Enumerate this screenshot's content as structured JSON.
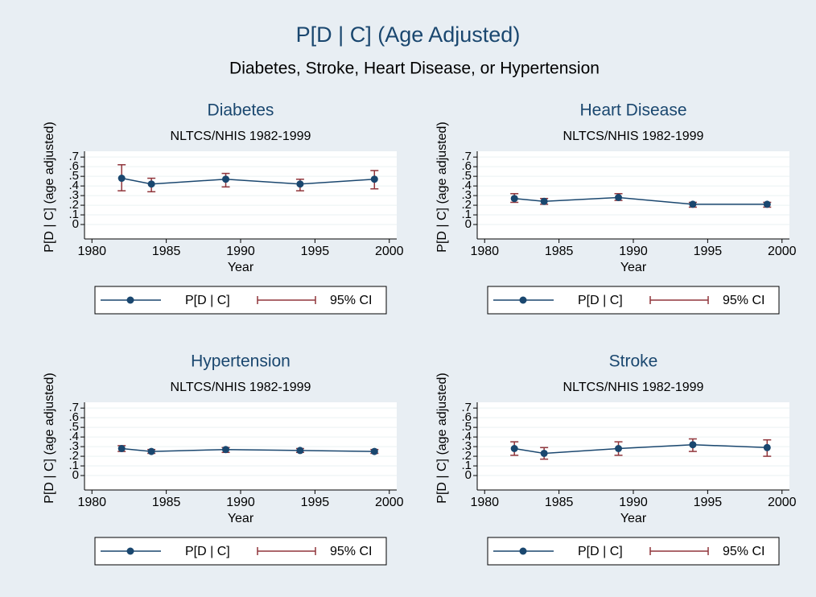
{
  "figure": {
    "title": "P[D | C] (Age Adjusted)",
    "subtitle": "Diabetes, Stroke, Heart Disease, or Hypertension"
  },
  "chart_data": [
    {
      "type": "line",
      "title": "Diabetes",
      "subtitle": "NLTCS/NHIS 1982-1999",
      "xlabel": "Year",
      "ylabel": "P[D | C] (age adjusted)",
      "x": [
        1982,
        1984,
        1989,
        1994,
        1999
      ],
      "xlim": [
        1979.5,
        2000.5
      ],
      "xticks": [
        1980,
        1985,
        1990,
        1995,
        2000
      ],
      "ylim": [
        -0.15,
        0.76
      ],
      "yticks": [
        0,
        {
          "value": 0.1,
          "label": ".1"
        },
        {
          "value": 0.2,
          "label": ".2"
        },
        {
          "value": 0.3,
          "label": ".3"
        },
        {
          "value": 0.4,
          "label": ".4"
        },
        {
          "value": 0.5,
          "label": ".5"
        },
        {
          "value": 0.6,
          "label": ".6"
        },
        {
          "value": 0.7,
          "label": ".7"
        }
      ],
      "grid": true,
      "series": [
        {
          "name": "P[D | C]",
          "color": "#1a476f",
          "values": [
            0.48,
            0.42,
            0.47,
            0.42,
            0.47
          ]
        },
        {
          "name": "95% CI",
          "color": "#90353b",
          "lower": [
            0.35,
            0.34,
            0.39,
            0.35,
            0.37
          ],
          "upper": [
            0.62,
            0.48,
            0.53,
            0.47,
            0.56
          ]
        }
      ]
    },
    {
      "type": "line",
      "title": "Heart Disease",
      "subtitle": "NLTCS/NHIS 1982-1999",
      "xlabel": "Year",
      "ylabel": "P[D | C] (age adjusted)",
      "x": [
        1982,
        1984,
        1989,
        1994,
        1999
      ],
      "xlim": [
        1979.5,
        2000.5
      ],
      "xticks": [
        1980,
        1985,
        1990,
        1995,
        2000
      ],
      "ylim": [
        -0.15,
        0.76
      ],
      "yticks": [
        0,
        {
          "value": 0.1,
          "label": ".1"
        },
        {
          "value": 0.2,
          "label": ".2"
        },
        {
          "value": 0.3,
          "label": ".3"
        },
        {
          "value": 0.4,
          "label": ".4"
        },
        {
          "value": 0.5,
          "label": ".5"
        },
        {
          "value": 0.6,
          "label": ".6"
        },
        {
          "value": 0.7,
          "label": ".7"
        }
      ],
      "grid": true,
      "series": [
        {
          "name": "P[D | C]",
          "color": "#1a476f",
          "values": [
            0.27,
            0.24,
            0.28,
            0.21,
            0.21
          ]
        },
        {
          "name": "95% CI",
          "color": "#90353b",
          "lower": [
            0.23,
            0.21,
            0.25,
            0.18,
            0.18
          ],
          "upper": [
            0.32,
            0.27,
            0.32,
            0.23,
            0.23
          ]
        }
      ]
    },
    {
      "type": "line",
      "title": "Hypertension",
      "subtitle": "NLTCS/NHIS 1982-1999",
      "xlabel": "Year",
      "ylabel": "P[D | C] (age adjusted)",
      "x": [
        1982,
        1984,
        1989,
        1994,
        1999
      ],
      "xlim": [
        1979.5,
        2000.5
      ],
      "xticks": [
        1980,
        1985,
        1990,
        1995,
        2000
      ],
      "ylim": [
        -0.15,
        0.76
      ],
      "yticks": [
        0,
        {
          "value": 0.1,
          "label": ".1"
        },
        {
          "value": 0.2,
          "label": ".2"
        },
        {
          "value": 0.3,
          "label": ".3"
        },
        {
          "value": 0.4,
          "label": ".4"
        },
        {
          "value": 0.5,
          "label": ".5"
        },
        {
          "value": 0.6,
          "label": ".6"
        },
        {
          "value": 0.7,
          "label": ".7"
        }
      ],
      "grid": true,
      "series": [
        {
          "name": "P[D | C]",
          "color": "#1a476f",
          "values": [
            0.28,
            0.25,
            0.27,
            0.26,
            0.25
          ]
        },
        {
          "name": "95% CI",
          "color": "#90353b",
          "lower": [
            0.25,
            0.23,
            0.24,
            0.24,
            0.23
          ],
          "upper": [
            0.31,
            0.27,
            0.29,
            0.28,
            0.27
          ]
        }
      ]
    },
    {
      "type": "line",
      "title": "Stroke",
      "subtitle": "NLTCS/NHIS 1982-1999",
      "xlabel": "Year",
      "ylabel": "P[D | C] (age adjusted)",
      "x": [
        1982,
        1984,
        1989,
        1994,
        1999
      ],
      "xlim": [
        1979.5,
        2000.5
      ],
      "xticks": [
        1980,
        1985,
        1990,
        1995,
        2000
      ],
      "ylim": [
        -0.15,
        0.76
      ],
      "yticks": [
        0,
        {
          "value": 0.1,
          "label": ".1"
        },
        {
          "value": 0.2,
          "label": ".2"
        },
        {
          "value": 0.3,
          "label": ".3"
        },
        {
          "value": 0.4,
          "label": ".4"
        },
        {
          "value": 0.5,
          "label": ".5"
        },
        {
          "value": 0.6,
          "label": ".6"
        },
        {
          "value": 0.7,
          "label": ".7"
        }
      ],
      "grid": true,
      "series": [
        {
          "name": "P[D | C]",
          "color": "#1a476f",
          "values": [
            0.28,
            0.23,
            0.28,
            0.32,
            0.29
          ]
        },
        {
          "name": "95% CI",
          "color": "#90353b",
          "lower": [
            0.21,
            0.17,
            0.21,
            0.25,
            0.2
          ],
          "upper": [
            0.35,
            0.29,
            0.35,
            0.38,
            0.37
          ]
        }
      ]
    }
  ]
}
